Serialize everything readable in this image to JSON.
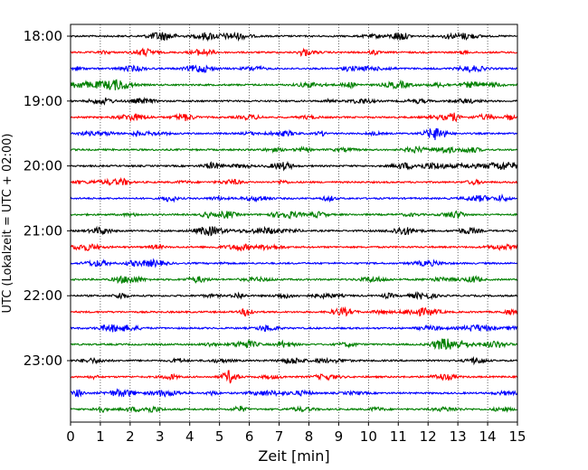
{
  "chart_data": {
    "type": "line",
    "title": "",
    "xlabel": "Zeit  [min]",
    "ylabel": "UTC (Lokalzeit = UTC + 02:00)",
    "xlim": [
      0,
      15
    ],
    "x_ticks": [
      0,
      1,
      2,
      3,
      4,
      5,
      6,
      7,
      8,
      9,
      10,
      11,
      12,
      13,
      14,
      15
    ],
    "x_grid": true,
    "row_interval_minutes": 15,
    "y_tick_labels": [
      "18:00",
      "19:00",
      "20:00",
      "21:00",
      "22:00",
      "23:00"
    ],
    "series": [
      {
        "row_start": "18:00",
        "color": "#000000"
      },
      {
        "row_start": "18:15",
        "color": "#ff0000"
      },
      {
        "row_start": "18:30",
        "color": "#0000ff"
      },
      {
        "row_start": "18:45",
        "color": "#008000"
      },
      {
        "row_start": "19:00",
        "color": "#000000"
      },
      {
        "row_start": "19:15",
        "color": "#ff0000"
      },
      {
        "row_start": "19:30",
        "color": "#0000ff"
      },
      {
        "row_start": "19:45",
        "color": "#008000"
      },
      {
        "row_start": "20:00",
        "color": "#000000"
      },
      {
        "row_start": "20:15",
        "color": "#ff0000"
      },
      {
        "row_start": "20:30",
        "color": "#0000ff"
      },
      {
        "row_start": "20:45",
        "color": "#008000"
      },
      {
        "row_start": "21:00",
        "color": "#000000"
      },
      {
        "row_start": "21:15",
        "color": "#ff0000"
      },
      {
        "row_start": "21:30",
        "color": "#0000ff"
      },
      {
        "row_start": "21:45",
        "color": "#008000"
      },
      {
        "row_start": "22:00",
        "color": "#000000"
      },
      {
        "row_start": "22:15",
        "color": "#ff0000"
      },
      {
        "row_start": "22:30",
        "color": "#0000ff"
      },
      {
        "row_start": "22:45",
        "color": "#008000"
      },
      {
        "row_start": "23:00",
        "color": "#000000"
      },
      {
        "row_start": "23:15",
        "color": "#ff0000"
      },
      {
        "row_start": "23:30",
        "color": "#0000ff"
      },
      {
        "row_start": "23:45",
        "color": "#008000"
      }
    ]
  }
}
